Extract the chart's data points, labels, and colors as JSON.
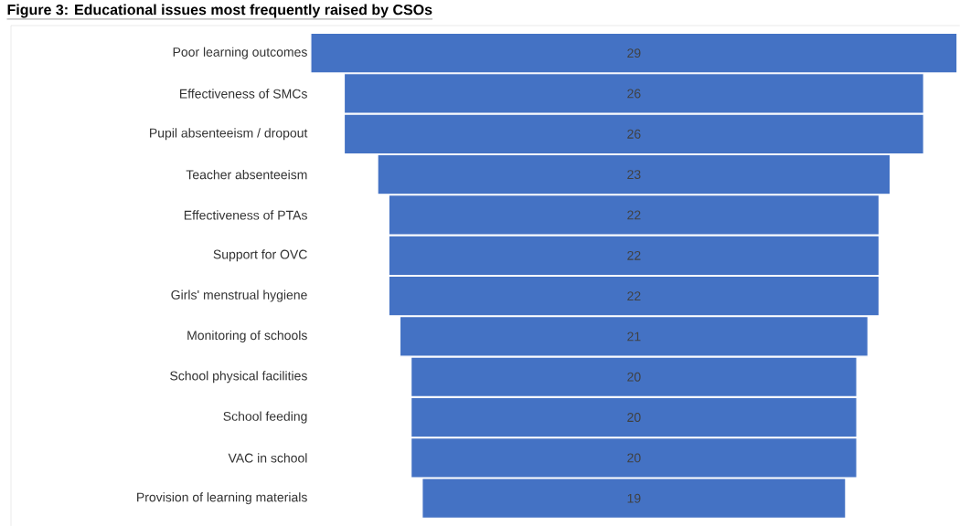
{
  "chart_data": {
    "type": "other",
    "title": "Figure 3: Educational issues most frequently raised by CSOs",
    "categories": [
      "Poor learning outcomes",
      "Effectiveness of SMCs",
      "Pupil absenteeism / dropout",
      "Teacher absenteeism",
      "Effectiveness of PTAs",
      "Support for OVC",
      "Girls' menstrual hygiene",
      "Monitoring of schools",
      "School physical facilities",
      "School feeding",
      "VAC in school",
      "Provision of learning materials"
    ],
    "values": [
      29,
      26,
      26,
      23,
      22,
      22,
      22,
      21,
      20,
      20,
      20,
      19
    ],
    "color": "#4472c4",
    "data_labels": true
  }
}
